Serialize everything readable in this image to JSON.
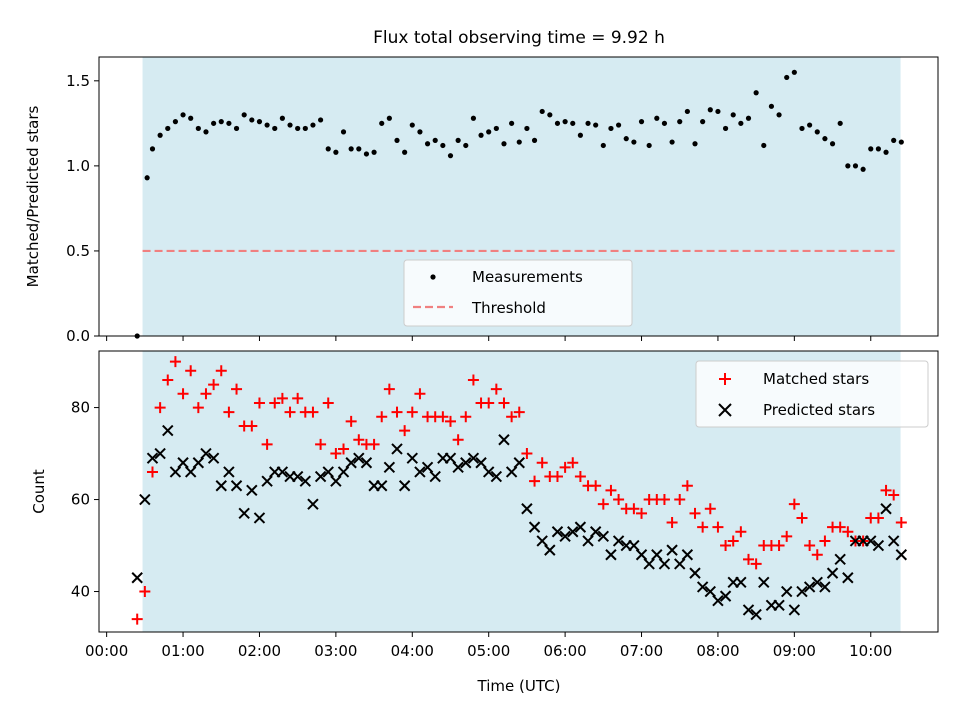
{
  "chart_data": [
    {
      "type": "scatter",
      "title": "Flux total observing time = 9.92 h",
      "xlabel": "",
      "ylabel": "Matched/Predicted stars",
      "xlim": [
        -0.1,
        10.88
      ],
      "ylim": [
        0,
        1.64
      ],
      "shaded_span": [
        0.47,
        10.39
      ],
      "legend_position": "lower-center",
      "yticks": [
        0.0,
        0.5,
        1.0,
        1.5
      ],
      "yticklabels": [
        "0.0",
        "0.5",
        "1.0",
        "1.5"
      ],
      "series": [
        {
          "name": "Measurements",
          "style": "dot",
          "color": "#000000",
          "x": [
            0.4,
            0.53,
            0.6,
            0.7,
            0.8,
            0.9,
            1.0,
            1.1,
            1.2,
            1.3,
            1.4,
            1.5,
            1.6,
            1.7,
            1.8,
            1.9,
            2.0,
            2.1,
            2.2,
            2.3,
            2.4,
            2.5,
            2.6,
            2.7,
            2.8,
            2.9,
            3.0,
            3.1,
            3.2,
            3.3,
            3.4,
            3.5,
            3.6,
            3.7,
            3.8,
            3.9,
            4.0,
            4.1,
            4.2,
            4.3,
            4.4,
            4.5,
            4.6,
            4.7,
            4.8,
            4.9,
            5.0,
            5.1,
            5.2,
            5.3,
            5.4,
            5.5,
            5.6,
            5.7,
            5.8,
            5.9,
            6.0,
            6.1,
            6.2,
            6.3,
            6.4,
            6.5,
            6.6,
            6.7,
            6.8,
            6.9,
            7.0,
            7.1,
            7.2,
            7.3,
            7.4,
            7.5,
            7.6,
            7.7,
            7.8,
            7.9,
            8.0,
            8.1,
            8.2,
            8.3,
            8.4,
            8.5,
            8.6,
            8.7,
            8.8,
            8.9,
            9.0,
            9.1,
            9.2,
            9.3,
            9.4,
            9.5,
            9.6,
            9.7,
            9.8,
            9.9,
            10.0,
            10.1,
            10.2,
            10.3,
            10.4
          ],
          "y": [
            0.0,
            0.93,
            1.1,
            1.18,
            1.22,
            1.26,
            1.3,
            1.28,
            1.22,
            1.2,
            1.25,
            1.26,
            1.25,
            1.22,
            1.3,
            1.27,
            1.26,
            1.24,
            1.22,
            1.28,
            1.24,
            1.22,
            1.22,
            1.24,
            1.27,
            1.1,
            1.08,
            1.2,
            1.1,
            1.1,
            1.07,
            1.08,
            1.25,
            1.28,
            1.15,
            1.08,
            1.24,
            1.2,
            1.13,
            1.15,
            1.12,
            1.06,
            1.15,
            1.12,
            1.28,
            1.18,
            1.2,
            1.22,
            1.13,
            1.25,
            1.14,
            1.22,
            1.15,
            1.32,
            1.3,
            1.25,
            1.26,
            1.25,
            1.18,
            1.25,
            1.24,
            1.12,
            1.22,
            1.24,
            1.16,
            1.14,
            1.26,
            1.12,
            1.28,
            1.25,
            1.14,
            1.26,
            1.32,
            1.13,
            1.26,
            1.33,
            1.32,
            1.22,
            1.3,
            1.25,
            1.28,
            1.43,
            1.12,
            1.35,
            1.3,
            1.52,
            1.55,
            1.22,
            1.24,
            1.2,
            1.16,
            1.13,
            1.25,
            1.0,
            1.0,
            0.98,
            1.1,
            1.1,
            1.08,
            1.15,
            1.14
          ]
        },
        {
          "name": "Threshold",
          "style": "dashed-line",
          "color": "#f08080",
          "x": [
            0.47,
            10.33
          ],
          "y": [
            0.5,
            0.5
          ]
        }
      ]
    },
    {
      "type": "scatter",
      "title": "",
      "xlabel": "Time (UTC)",
      "ylabel": "Count",
      "xlim": [
        -0.1,
        10.88
      ],
      "ylim": [
        31.2,
        92.3
      ],
      "shaded_span": [
        0.47,
        10.39
      ],
      "legend_position": "top-right",
      "yticks": [
        40,
        60,
        80
      ],
      "yticklabels": [
        "40",
        "60",
        "80"
      ],
      "xticks": [
        0,
        1,
        2,
        3,
        4,
        5,
        6,
        7,
        8,
        9,
        10
      ],
      "xticklabels": [
        "00:00",
        "01:00",
        "02:00",
        "03:00",
        "04:00",
        "05:00",
        "06:00",
        "07:00",
        "08:00",
        "09:00",
        "10:00"
      ],
      "series": [
        {
          "name": "Matched stars",
          "style": "plus",
          "color": "#ff0000",
          "x": [
            0.4,
            0.5,
            0.6,
            0.7,
            0.8,
            0.9,
            1.0,
            1.1,
            1.2,
            1.3,
            1.4,
            1.5,
            1.6,
            1.7,
            1.8,
            1.9,
            2.0,
            2.1,
            2.2,
            2.3,
            2.4,
            2.5,
            2.6,
            2.7,
            2.8,
            2.9,
            3.0,
            3.1,
            3.2,
            3.3,
            3.4,
            3.5,
            3.6,
            3.7,
            3.8,
            3.9,
            4.0,
            4.1,
            4.2,
            4.3,
            4.4,
            4.5,
            4.6,
            4.7,
            4.8,
            4.9,
            5.0,
            5.1,
            5.2,
            5.3,
            5.4,
            5.5,
            5.6,
            5.7,
            5.8,
            5.9,
            6.0,
            6.1,
            6.2,
            6.3,
            6.4,
            6.5,
            6.6,
            6.7,
            6.8,
            6.9,
            7.0,
            7.1,
            7.2,
            7.3,
            7.4,
            7.5,
            7.6,
            7.7,
            7.8,
            7.9,
            8.0,
            8.1,
            8.2,
            8.3,
            8.4,
            8.5,
            8.6,
            8.7,
            8.8,
            8.9,
            9.0,
            9.1,
            9.2,
            9.3,
            9.4,
            9.5,
            9.6,
            9.7,
            9.8,
            9.9,
            10.0,
            10.1,
            10.2,
            10.3,
            10.4
          ],
          "y": [
            34,
            40,
            66,
            80,
            86,
            90,
            83,
            88,
            80,
            83,
            85,
            88,
            79,
            84,
            76,
            76,
            81,
            72,
            81,
            82,
            79,
            82,
            79,
            79,
            72,
            81,
            70,
            71,
            77,
            73,
            72,
            72,
            78,
            84,
            79,
            75,
            79,
            83,
            78,
            78,
            78,
            77,
            73,
            78,
            86,
            81,
            81,
            84,
            81,
            78,
            79,
            70,
            64,
            68,
            65,
            65,
            67,
            68,
            65,
            63,
            63,
            59,
            62,
            60,
            58,
            58,
            57,
            60,
            60,
            60,
            55,
            60,
            63,
            57,
            54,
            58,
            54,
            50,
            51,
            53,
            47,
            46,
            50,
            50,
            50,
            52,
            59,
            56,
            50,
            48,
            51,
            54,
            54,
            53,
            51,
            51,
            56,
            56,
            62,
            61,
            55
          ]
        },
        {
          "name": "Predicted stars",
          "style": "x",
          "color": "#000000",
          "x": [
            0.4,
            0.5,
            0.6,
            0.7,
            0.8,
            0.9,
            1.0,
            1.1,
            1.2,
            1.3,
            1.4,
            1.5,
            1.6,
            1.7,
            1.8,
            1.9,
            2.0,
            2.1,
            2.2,
            2.3,
            2.4,
            2.5,
            2.6,
            2.7,
            2.8,
            2.9,
            3.0,
            3.1,
            3.2,
            3.3,
            3.4,
            3.5,
            3.6,
            3.7,
            3.8,
            3.9,
            4.0,
            4.1,
            4.2,
            4.3,
            4.4,
            4.5,
            4.6,
            4.7,
            4.8,
            4.9,
            5.0,
            5.1,
            5.2,
            5.3,
            5.4,
            5.5,
            5.6,
            5.7,
            5.8,
            5.9,
            6.0,
            6.1,
            6.2,
            6.3,
            6.4,
            6.5,
            6.6,
            6.7,
            6.8,
            6.9,
            7.0,
            7.1,
            7.2,
            7.3,
            7.4,
            7.5,
            7.6,
            7.7,
            7.8,
            7.9,
            8.0,
            8.1,
            8.2,
            8.3,
            8.4,
            8.5,
            8.6,
            8.7,
            8.8,
            8.9,
            9.0,
            9.1,
            9.2,
            9.3,
            9.4,
            9.5,
            9.6,
            9.7,
            9.8,
            9.9,
            10.0,
            10.1,
            10.2,
            10.3,
            10.4
          ],
          "y": [
            43,
            60,
            69,
            70,
            75,
            66,
            68,
            66,
            68,
            70,
            69,
            63,
            66,
            63,
            57,
            62,
            56,
            64,
            66,
            66,
            65,
            65,
            64,
            59,
            65,
            66,
            64,
            66,
            68,
            69,
            68,
            63,
            63,
            67,
            71,
            63,
            69,
            66,
            67,
            65,
            69,
            69,
            67,
            68,
            69,
            68,
            66,
            65,
            73,
            66,
            68,
            58,
            54,
            51,
            49,
            53,
            52,
            53,
            54,
            51,
            53,
            52,
            48,
            51,
            50,
            50,
            48,
            46,
            48,
            46,
            49,
            46,
            48,
            44,
            41,
            40,
            38,
            39,
            42,
            42,
            36,
            35,
            42,
            37,
            37,
            40,
            36,
            40,
            41,
            42,
            41,
            44,
            47,
            43,
            51,
            51,
            51,
            50,
            58,
            51,
            48
          ]
        }
      ]
    }
  ]
}
